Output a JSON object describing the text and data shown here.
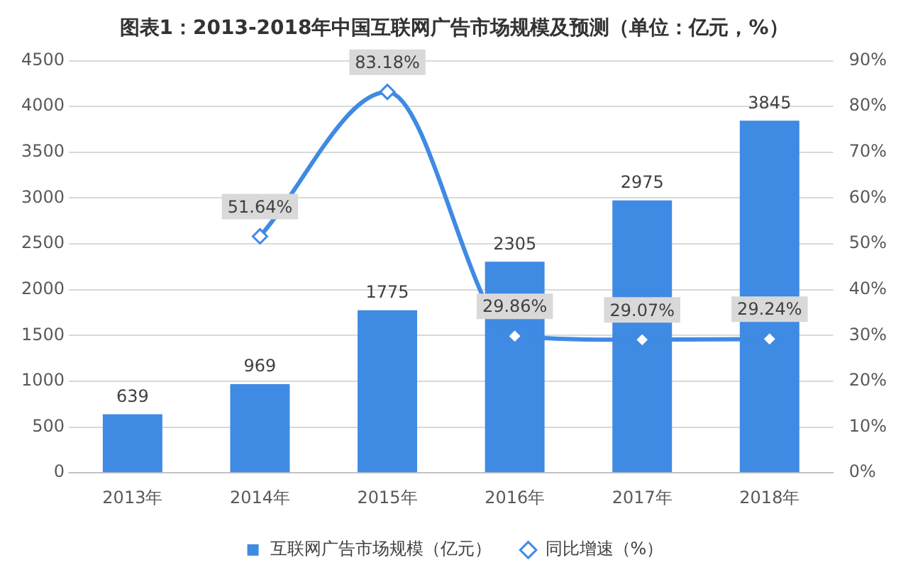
{
  "chart_data": {
    "type": "bar",
    "title": "图表1：2013-2018年中国互联网广告市场规模及预测（单位：亿元，%）",
    "categories": [
      "2013年",
      "2014年",
      "2015年",
      "2016年",
      "2017年",
      "2018年"
    ],
    "series": [
      {
        "name": "互联网广告市场规模（亿元）",
        "color": "#3f8ae3",
        "values": [
          639,
          969,
          1775,
          2305,
          2975,
          3845
        ],
        "value_labels": [
          "639",
          "969",
          "1775",
          "2305",
          "2975",
          "3845"
        ]
      },
      {
        "name": "同比增速（%）",
        "type": "line",
        "axis": "y2",
        "color": "#3f8ae3",
        "marker": "diamond",
        "values": [
          null,
          51.64,
          83.18,
          29.86,
          29.07,
          29.24
        ],
        "value_labels": [
          null,
          "51.64%",
          "83.18%",
          "29.86%",
          "29.07%",
          "29.24%"
        ]
      }
    ],
    "ylim": [
      0,
      4500
    ],
    "yticks": [
      0,
      500,
      1000,
      1500,
      2000,
      2500,
      3000,
      3500,
      4000,
      4500
    ],
    "y2lim": [
      0,
      90
    ],
    "y2ticks": [
      {
        "value": 0,
        "label": "0%"
      },
      {
        "value": 10,
        "label": "10%"
      },
      {
        "value": 20,
        "label": "20%"
      },
      {
        "value": 30,
        "label": "30%"
      },
      {
        "value": 40,
        "label": "40%"
      },
      {
        "value": 50,
        "label": "50%"
      },
      {
        "value": 60,
        "label": "60%"
      },
      {
        "value": 70,
        "label": "70%"
      },
      {
        "value": 80,
        "label": "80%"
      },
      {
        "value": 90,
        "label": "90%"
      }
    ],
    "grid": "y",
    "legend": "bottom"
  }
}
